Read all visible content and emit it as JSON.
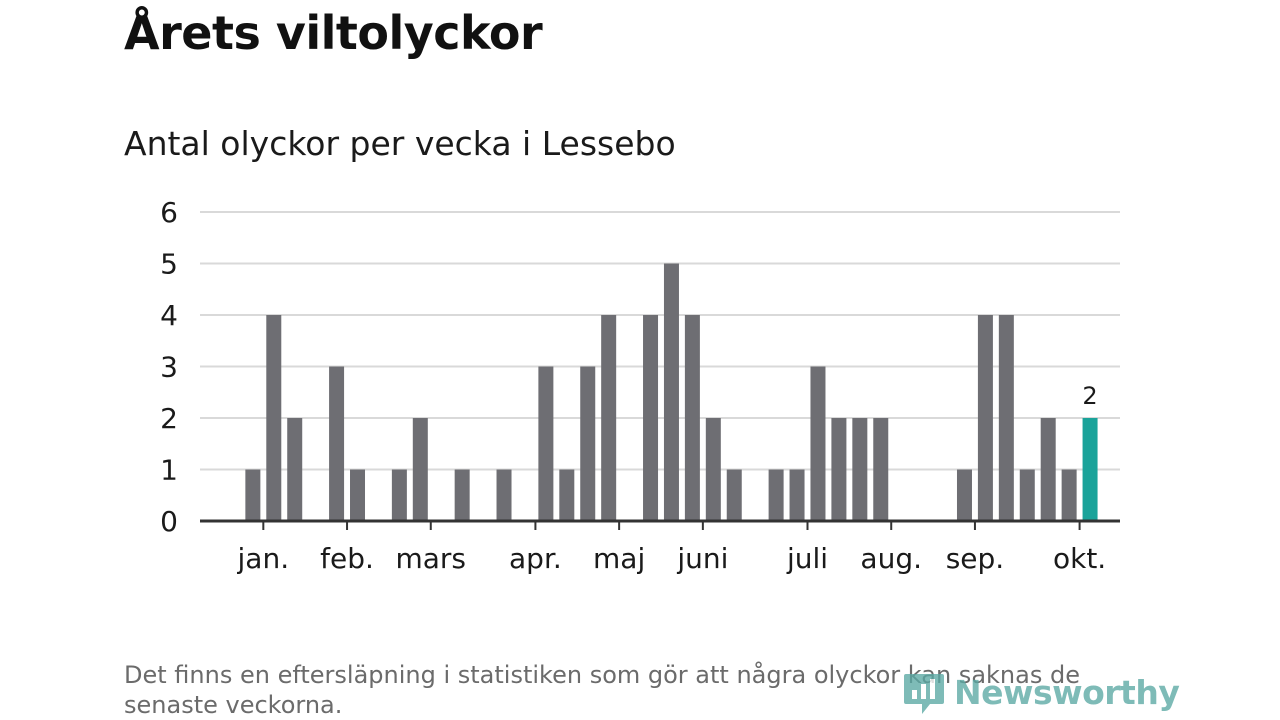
{
  "title": "Årets viltolyckor",
  "subtitle": "Antal olyckor per vecka i Lessebo",
  "footnote": "Det finns en eftersläpning i statistiken som gör att några olyckor kan saknas de senaste veckorna.",
  "brand": {
    "name": "Newsworthy",
    "icon": "newsworthy-logo-icon",
    "color": "#5aa9a4"
  },
  "colors": {
    "bar": "#6e6e73",
    "highlight": "#1aa39a",
    "grid": "#d9d9d9",
    "axis": "#333333"
  },
  "chart_data": {
    "type": "bar",
    "title": "Antal olyckor per vecka i Lessebo",
    "xlabel": "",
    "ylabel": "",
    "ylim": [
      0,
      6
    ],
    "yticks": [
      0,
      1,
      2,
      3,
      4,
      5,
      6
    ],
    "grid": true,
    "week_range": [
      1,
      44
    ],
    "values": [
      0,
      0,
      1,
      4,
      2,
      0,
      3,
      1,
      0,
      1,
      2,
      0,
      1,
      0,
      1,
      0,
      3,
      1,
      3,
      4,
      0,
      4,
      5,
      4,
      2,
      1,
      0,
      1,
      1,
      3,
      2,
      2,
      2,
      0,
      0,
      0,
      1,
      4,
      4,
      1,
      2,
      1,
      2,
      0
    ],
    "highlight_index": 42,
    "highlight_label": "2",
    "month_labels": [
      {
        "label": "jan.",
        "week": 3.5
      },
      {
        "label": "feb.",
        "week": 7.5
      },
      {
        "label": "mars",
        "week": 11.5
      },
      {
        "label": "apr.",
        "week": 16.5
      },
      {
        "label": "maj",
        "week": 20.5
      },
      {
        "label": "juni",
        "week": 24.5
      },
      {
        "label": "juli",
        "week": 29.5
      },
      {
        "label": "aug.",
        "week": 33.5
      },
      {
        "label": "sep.",
        "week": 37.5
      },
      {
        "label": "okt.",
        "week": 42.5
      }
    ]
  }
}
